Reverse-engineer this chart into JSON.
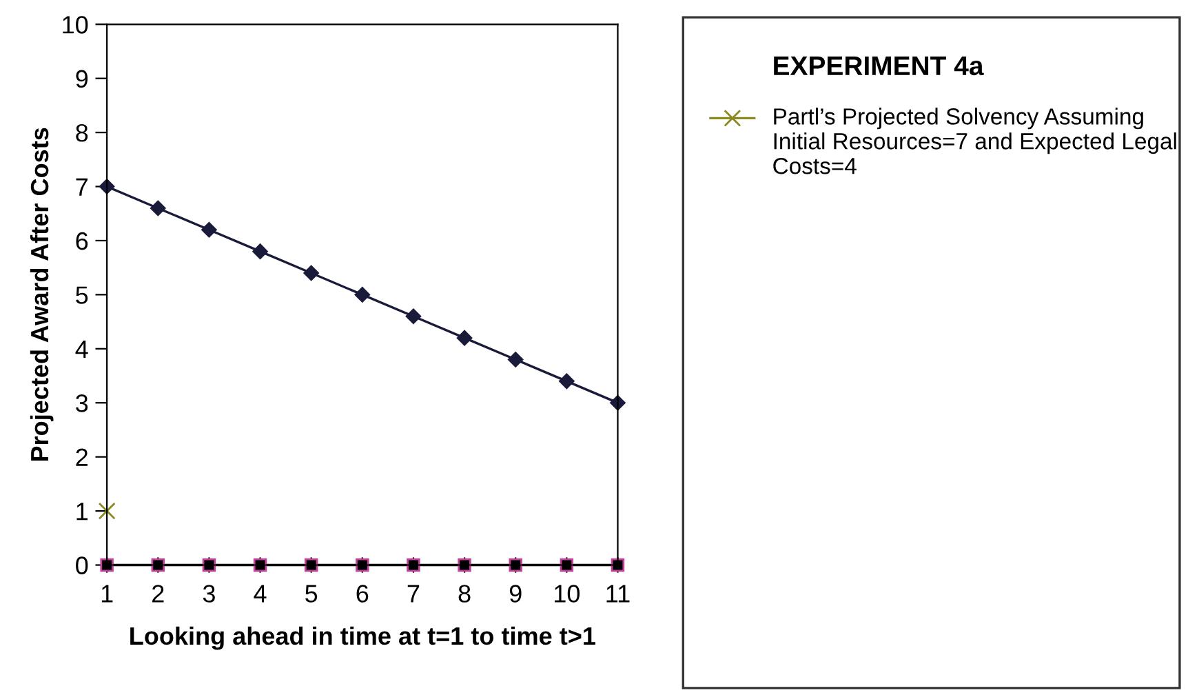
{
  "chart_data": {
    "type": "line",
    "xlabel": "Looking ahead in time at t=1 to time t>1",
    "ylabel": "Projected Award After Costs",
    "legend_title": "EXPERIMENT 4a",
    "x": [
      1,
      2,
      3,
      4,
      5,
      6,
      7,
      8,
      9,
      10,
      11
    ],
    "series": [
      {
        "color": "#1a1a3a",
        "marker": "diamond",
        "values": [
          7,
          6.6,
          6.2,
          5.8,
          5.4,
          5.0,
          4.6,
          4.2,
          3.8,
          3.4,
          3.0
        ]
      },
      {
        "color": "#c0409a",
        "marker": "square",
        "values": [
          0,
          0,
          0,
          0,
          0,
          0,
          0,
          0,
          0,
          0,
          0
        ]
      },
      {
        "name": "Partl’s Projected Solvency Assuming Initial Resources=7 and Expected Legal Costs=4",
        "type": "scatter",
        "color": "#8a8a20",
        "marker": "cross",
        "x": [
          1
        ],
        "values": [
          1
        ]
      }
    ],
    "xlim": [
      1,
      11
    ],
    "xticks": [
      1,
      2,
      3,
      4,
      5,
      6,
      7,
      8,
      9,
      10,
      11
    ],
    "ylim": [
      0,
      10
    ],
    "yticks": [
      0,
      1,
      2,
      3,
      4,
      5,
      6,
      7,
      8,
      9,
      10
    ],
    "grid": false,
    "legend": "right"
  }
}
